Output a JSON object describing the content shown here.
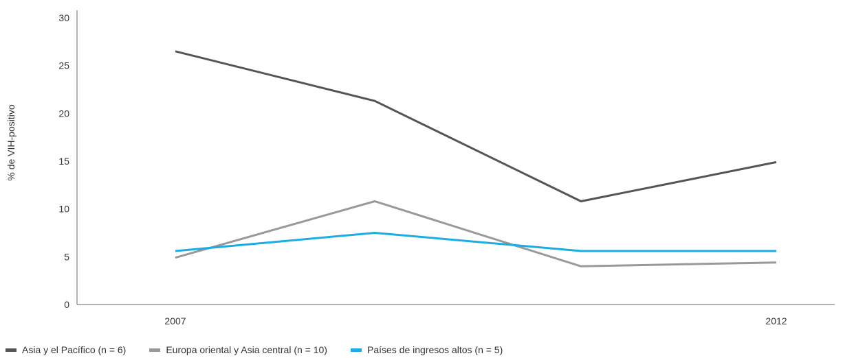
{
  "chart_data": {
    "type": "line",
    "title": "",
    "xlabel": "",
    "ylabel": "% de VIH-positivo",
    "ylim": [
      0,
      30
    ],
    "yticks": [
      "0",
      "5",
      "10",
      "15",
      "20",
      "25",
      "30"
    ],
    "xtick_labels": [
      "2007",
      "",
      "",
      "2012"
    ],
    "grid": false,
    "legend_position": "bottom-left",
    "series": [
      {
        "name": "Asia y el Pacífico (n = 6)",
        "color": "#555555",
        "values": [
          26.5,
          21.3,
          10.8,
          14.9
        ]
      },
      {
        "name": "Europa oriental y Asia central (n = 10)",
        "color": "#999999",
        "values": [
          4.9,
          10.8,
          4.0,
          4.4
        ]
      },
      {
        "name": "Países de ingresos altos (n = 5)",
        "color": "#1aace4",
        "values": [
          5.6,
          7.5,
          5.6,
          5.6
        ]
      }
    ]
  }
}
